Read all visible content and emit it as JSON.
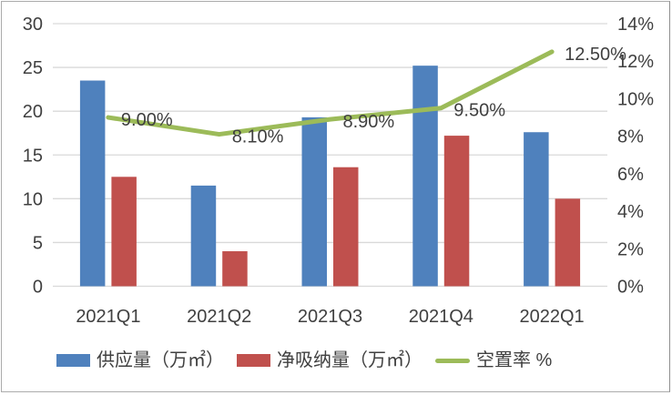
{
  "figure": {
    "background": "#ffffff",
    "border_color": "#ababab"
  },
  "colors": {
    "supply_bar": "#4F81BD",
    "absorption_bar": "#C0504D",
    "vacancy_line": "#9CBB59",
    "grid": "#d9d9d9",
    "axis_text": "#404040",
    "data_label_text": "#3f3f3f"
  },
  "chart_data": {
    "type": "bar",
    "subtype": "grouped bars with secondary-axis line (combo)",
    "title": "",
    "xlabel": "",
    "ylabel_left": "",
    "ylabel_right": "",
    "categories": [
      "2021Q1",
      "2021Q2",
      "2021Q3",
      "2021Q4",
      "2022Q1"
    ],
    "series": [
      {
        "name": "供应量（万㎡）",
        "type": "bar",
        "axis": "left",
        "color": "#4F81BD",
        "values": [
          23.5,
          11.5,
          19.3,
          25.2,
          17.6
        ]
      },
      {
        "name": "净吸纳量（万㎡）",
        "type": "bar",
        "axis": "left",
        "color": "#C0504D",
        "values": [
          12.5,
          4.0,
          13.6,
          17.2,
          10.0
        ]
      },
      {
        "name": "空置率 %",
        "type": "line",
        "axis": "right",
        "color": "#9CBB59",
        "values": [
          9.0,
          8.1,
          8.9,
          9.5,
          12.5
        ],
        "point_labels": [
          "9.00%",
          "8.10%",
          "8.90%",
          "9.50%",
          "12.50%"
        ]
      }
    ],
    "left_axis": {
      "min": 0,
      "max": 30,
      "step": 5,
      "ticks": [
        "30",
        "25",
        "20",
        "15",
        "10",
        "5",
        "0"
      ]
    },
    "right_axis": {
      "min": 0,
      "max": 14,
      "step": 2,
      "ticks": [
        "14%",
        "12%",
        "10%",
        "8%",
        "6%",
        "4%",
        "2%",
        "0%"
      ]
    },
    "grid": "horizontal",
    "legend_position": "bottom"
  },
  "legend": {
    "items": [
      {
        "label": "供应量（万㎡）",
        "color": "#4F81BD",
        "swatch": "rect"
      },
      {
        "label": "净吸纳量（万㎡）",
        "color": "#C0504D",
        "swatch": "rect"
      },
      {
        "label": "空置率 %",
        "color": "#9CBB59",
        "swatch": "line"
      }
    ]
  }
}
